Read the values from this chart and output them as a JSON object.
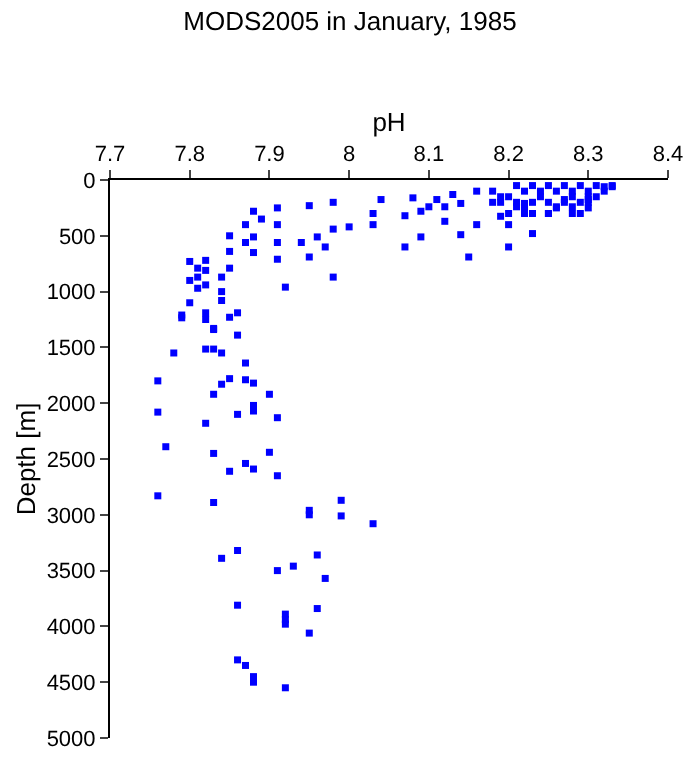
{
  "chart_data": {
    "type": "scatter",
    "title": "MODS2005 in January, 1985",
    "xlabel": "pH",
    "ylabel": "Depth [m]",
    "xlim": [
      7.7,
      8.4
    ],
    "xticks": [
      7.7,
      7.8,
      7.9,
      8,
      8.1,
      8.2,
      8.3,
      8.4
    ],
    "ylim": [
      5000,
      0
    ],
    "yticks": [
      0,
      500,
      1000,
      1500,
      2000,
      2500,
      3000,
      3500,
      4000,
      4500,
      5000
    ],
    "legend": false,
    "marker": "square",
    "series": [
      {
        "color": "#0000ff",
        "x": [
          8.21,
          8.22,
          8.23,
          8.24,
          8.25,
          8.26,
          8.27,
          8.28,
          8.29,
          8.3,
          8.31,
          8.32,
          8.33,
          8.3,
          8.29,
          8.3,
          8.28,
          8.27,
          8.26,
          8.25,
          8.24,
          8.23,
          8.22,
          8.21,
          8.2,
          8.19,
          8.2,
          8.22,
          8.25,
          8.28,
          8.29,
          8.31,
          8.3,
          8.04,
          8.0,
          8.03,
          8.03,
          7.98,
          7.95,
          7.98,
          7.97,
          7.98,
          7.95,
          7.96,
          7.94,
          7.92,
          7.91,
          7.91,
          7.91,
          7.91,
          7.89,
          7.88,
          7.88,
          7.88,
          7.87,
          7.87,
          7.85,
          7.85,
          7.85,
          7.84,
          7.84,
          7.84,
          7.82,
          7.82,
          7.82,
          7.82,
          7.81,
          7.81,
          7.81,
          7.8,
          7.8,
          7.8,
          7.79,
          7.86,
          7.83,
          8.07,
          8.07,
          8.08,
          8.09,
          8.09,
          8.1,
          8.11,
          8.12,
          8.12,
          8.13,
          8.14,
          8.14,
          8.16,
          8.16,
          8.15,
          8.18,
          8.18,
          8.19,
          8.19,
          8.2,
          8.2,
          8.21,
          8.22,
          8.23,
          8.23,
          8.25,
          8.26,
          8.27,
          8.28,
          8.3,
          8.32,
          8.33,
          7.79,
          7.82,
          7.85,
          7.83,
          7.86,
          7.78,
          7.82,
          7.83,
          7.84,
          7.87,
          7.87,
          7.88,
          7.76,
          7.84,
          7.85,
          7.83,
          7.9,
          7.88,
          7.88,
          7.86,
          7.91,
          7.76,
          7.82,
          7.77,
          7.83,
          7.9,
          7.88,
          7.85,
          7.87,
          7.91,
          7.76,
          7.83,
          7.99,
          7.95,
          7.95,
          7.99,
          8.03,
          7.86,
          7.84,
          7.96,
          7.93,
          7.91,
          7.97,
          7.86,
          7.96,
          7.92,
          7.92,
          7.92,
          7.95,
          7.86,
          7.87,
          7.88,
          7.88,
          7.92
        ],
        "values": [
          50,
          100,
          50,
          100,
          50,
          100,
          50,
          100,
          50,
          100,
          50,
          100,
          50,
          150,
          200,
          250,
          150,
          200,
          250,
          200,
          150,
          200,
          250,
          200,
          150,
          200,
          300,
          300,
          300,
          300,
          300,
          150,
          200,
          175,
          420,
          300,
          400,
          200,
          230,
          440,
          600,
          870,
          690,
          510,
          560,
          960,
          250,
          400,
          560,
          710,
          350,
          280,
          510,
          650,
          400,
          560,
          500,
          640,
          790,
          870,
          1000,
          1080,
          720,
          810,
          940,
          1190,
          790,
          870,
          970,
          730,
          900,
          1100,
          1210,
          1190,
          1340,
          320,
          600,
          160,
          280,
          510,
          240,
          175,
          240,
          370,
          130,
          210,
          490,
          100,
          400,
          690,
          100,
          200,
          150,
          325,
          400,
          600,
          240,
          210,
          300,
          480,
          300,
          240,
          175,
          240,
          175,
          60,
          60,
          1235,
          1250,
          1230,
          1330,
          1390,
          1550,
          1515,
          1515,
          1550,
          1640,
          1790,
          1820,
          1800,
          1830,
          1780,
          1920,
          1920,
          2020,
          2070,
          2100,
          2130,
          2080,
          2180,
          2390,
          2450,
          2440,
          2590,
          2610,
          2540,
          2650,
          2830,
          2890,
          2870,
          2960,
          3000,
          3010,
          3080,
          3320,
          3390,
          3360,
          3460,
          3500,
          3570,
          3810,
          3840,
          3890,
          3940,
          3980,
          4060,
          4300,
          4350,
          4450,
          4500,
          4550
        ]
      }
    ]
  }
}
